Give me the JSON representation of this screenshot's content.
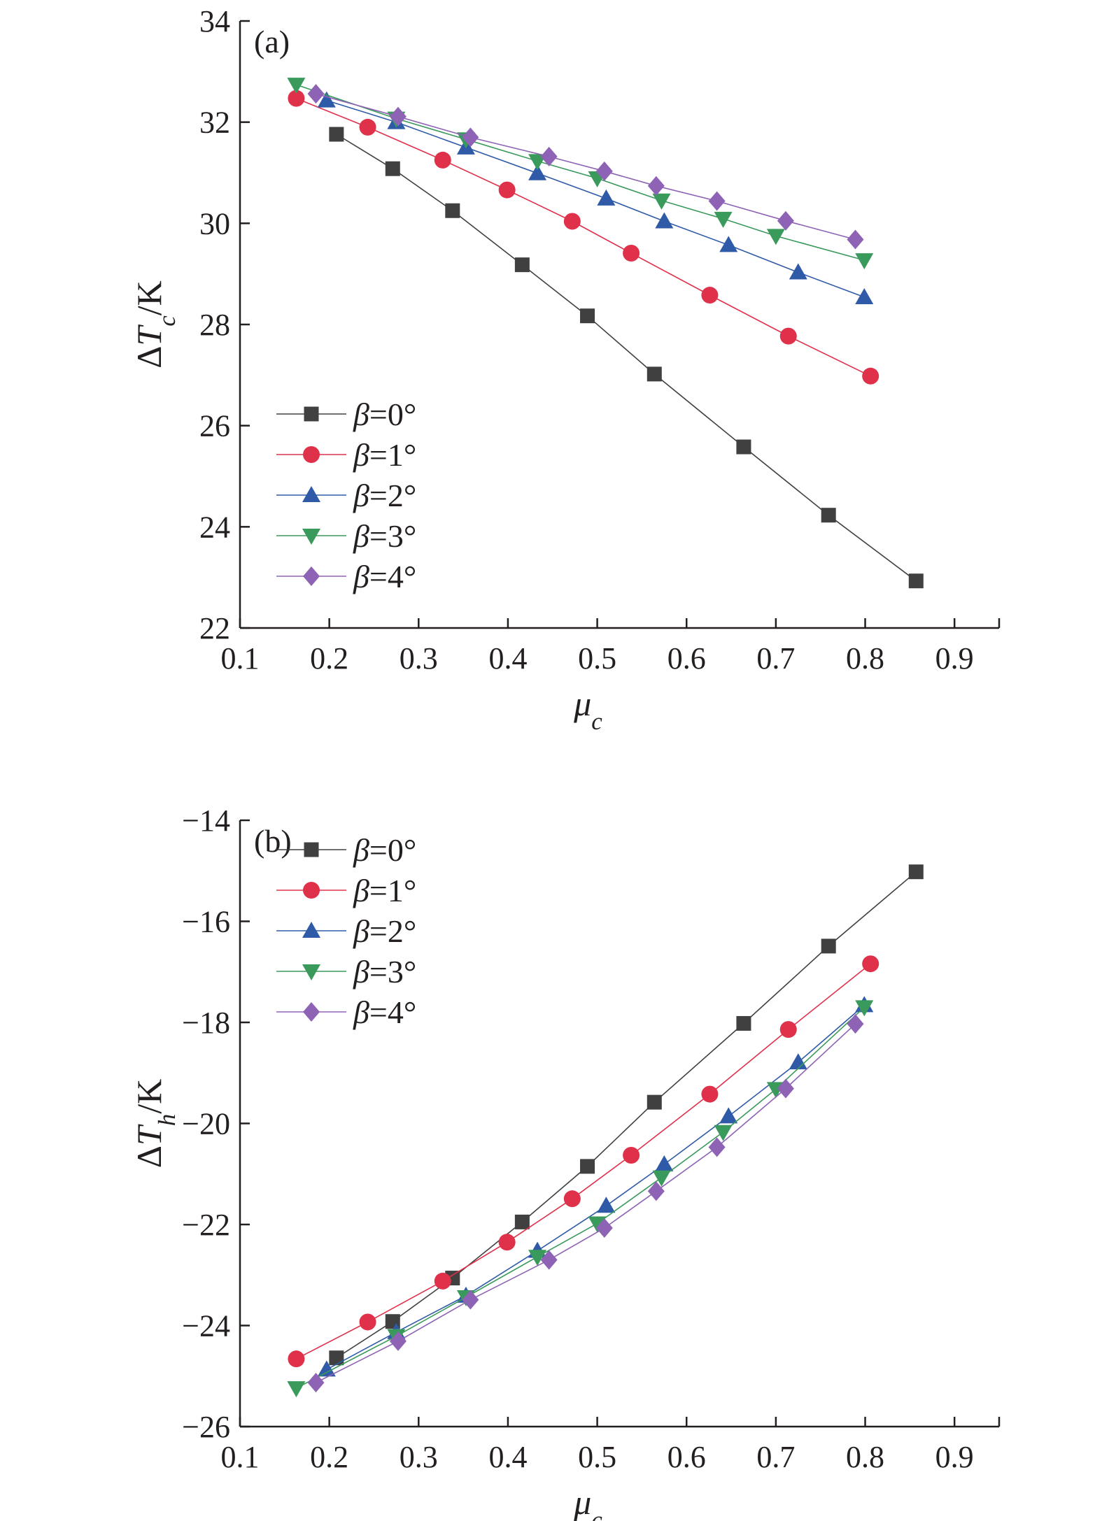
{
  "chart_data": [
    {
      "type": "line",
      "panel_label": "(a)",
      "xlabel": {
        "var": "μ",
        "sub": "c",
        "unit": ""
      },
      "ylabel": {
        "prefix": "Δ",
        "var": "T",
        "sub": "c",
        "unit": "/K"
      },
      "xlim": [
        0.1,
        0.95
      ],
      "ylim": [
        22,
        34
      ],
      "x_ticks": [
        0.1,
        0.2,
        0.3,
        0.4,
        0.5,
        0.6,
        0.7,
        0.8,
        0.9
      ],
      "x_tick_labels": [
        "0.1",
        "0.2",
        "0.3",
        "0.4",
        "0.5",
        "0.6",
        "0.7",
        "0.8",
        "0.9"
      ],
      "y_ticks": [
        22,
        24,
        26,
        28,
        30,
        32,
        34
      ],
      "y_tick_labels": [
        "22",
        "24",
        "26",
        "28",
        "30",
        "32",
        "34"
      ],
      "grid": false,
      "legend_position": "lower-left",
      "series": [
        {
          "name": "β=0°",
          "label_var": "β",
          "label_rest": "=0°",
          "marker": "square",
          "color": "#404040",
          "x": [
            0.208,
            0.271,
            0.338,
            0.416,
            0.489,
            0.564,
            0.664,
            0.759,
            0.857
          ],
          "y": [
            31.76,
            31.08,
            30.25,
            29.18,
            28.17,
            27.02,
            25.58,
            24.23,
            22.93
          ]
        },
        {
          "name": "β=1°",
          "label_var": "β",
          "label_rest": "=1°",
          "marker": "circle",
          "color": "#e0314b",
          "x": [
            0.163,
            0.243,
            0.327,
            0.399,
            0.472,
            0.538,
            0.626,
            0.714,
            0.806
          ],
          "y": [
            32.47,
            31.9,
            31.25,
            30.66,
            30.04,
            29.41,
            28.58,
            27.77,
            26.98
          ]
        },
        {
          "name": "β=2°",
          "label_var": "β",
          "label_rest": "=2°",
          "marker": "triangle-up",
          "color": "#2f5aa8",
          "x": [
            0.197,
            0.275,
            0.353,
            0.433,
            0.51,
            0.575,
            0.647,
            0.725,
            0.799
          ],
          "y": [
            32.43,
            32.0,
            31.5,
            30.99,
            30.49,
            30.04,
            29.57,
            29.03,
            28.54
          ]
        },
        {
          "name": "β=3°",
          "label_var": "β",
          "label_rest": "=3°",
          "marker": "triangle-down",
          "color": "#3a9a5b",
          "x": [
            0.163,
            0.275,
            0.353,
            0.433,
            0.5,
            0.572,
            0.641,
            0.7,
            0.799
          ],
          "y": [
            32.74,
            32.07,
            31.66,
            31.23,
            30.89,
            30.45,
            30.09,
            29.75,
            29.27
          ]
        },
        {
          "name": "β=4°",
          "label_var": "β",
          "label_rest": "=4°",
          "marker": "diamond",
          "color": "#8e63b5",
          "x": [
            0.185,
            0.277,
            0.358,
            0.446,
            0.508,
            0.566,
            0.634,
            0.711,
            0.789
          ],
          "y": [
            32.56,
            32.11,
            31.7,
            31.32,
            31.03,
            30.74,
            30.44,
            30.05,
            29.68
          ]
        }
      ]
    },
    {
      "type": "line",
      "panel_label": "(b)",
      "xlabel": {
        "var": "μ",
        "sub": "c",
        "unit": ""
      },
      "ylabel": {
        "prefix": "Δ",
        "var": "T",
        "sub": "h",
        "unit": "/K"
      },
      "xlim": [
        0.1,
        0.95
      ],
      "ylim": [
        -26,
        -14
      ],
      "x_ticks": [
        0.1,
        0.2,
        0.3,
        0.4,
        0.5,
        0.6,
        0.7,
        0.8,
        0.9
      ],
      "x_tick_labels": [
        "0.1",
        "0.2",
        "0.3",
        "0.4",
        "0.5",
        "0.6",
        "0.7",
        "0.8",
        "0.9"
      ],
      "y_ticks": [
        -26,
        -24,
        -22,
        -20,
        -18,
        -16,
        -14
      ],
      "y_tick_labels": [
        "−26",
        "−24",
        "−22",
        "−20",
        "−18",
        "−16",
        "−14"
      ],
      "grid": false,
      "legend_position": "upper-left",
      "series": [
        {
          "name": "β=0°",
          "label_var": "β",
          "label_rest": "=0°",
          "marker": "square",
          "color": "#404040",
          "x": [
            0.208,
            0.271,
            0.338,
            0.416,
            0.489,
            0.564,
            0.664,
            0.759,
            0.857
          ],
          "y": [
            -24.64,
            -23.92,
            -23.06,
            -21.95,
            -20.85,
            -19.58,
            -18.02,
            -16.49,
            -15.02
          ]
        },
        {
          "name": "β=1°",
          "label_var": "β",
          "label_rest": "=1°",
          "marker": "circle",
          "color": "#e0314b",
          "x": [
            0.163,
            0.243,
            0.327,
            0.399,
            0.472,
            0.538,
            0.626,
            0.714,
            0.806
          ],
          "y": [
            -24.66,
            -23.93,
            -23.12,
            -22.35,
            -21.49,
            -20.63,
            -19.42,
            -18.14,
            -16.84
          ]
        },
        {
          "name": "β=2°",
          "label_var": "β",
          "label_rest": "=2°",
          "marker": "triangle-up",
          "color": "#2f5aa8",
          "x": [
            0.197,
            0.275,
            0.353,
            0.433,
            0.51,
            0.575,
            0.647,
            0.725,
            0.799
          ],
          "y": [
            -24.87,
            -24.13,
            -23.41,
            -22.52,
            -21.63,
            -20.81,
            -19.86,
            -18.79,
            -17.66
          ]
        },
        {
          "name": "β=3°",
          "label_var": "β",
          "label_rest": "=3°",
          "marker": "triangle-down",
          "color": "#3a9a5b",
          "x": [
            0.163,
            0.275,
            0.353,
            0.433,
            0.5,
            0.572,
            0.641,
            0.7,
            0.799
          ],
          "y": [
            -25.24,
            -24.21,
            -23.44,
            -22.64,
            -21.98,
            -21.07,
            -20.17,
            -19.32,
            -17.7
          ]
        },
        {
          "name": "β=4°",
          "label_var": "β",
          "label_rest": "=4°",
          "marker": "diamond",
          "color": "#8e63b5",
          "x": [
            0.185,
            0.277,
            0.358,
            0.446,
            0.508,
            0.566,
            0.634,
            0.711,
            0.789
          ],
          "y": [
            -25.13,
            -24.31,
            -23.49,
            -22.7,
            -22.07,
            -21.34,
            -20.47,
            -19.31,
            -18.03
          ]
        }
      ]
    }
  ]
}
